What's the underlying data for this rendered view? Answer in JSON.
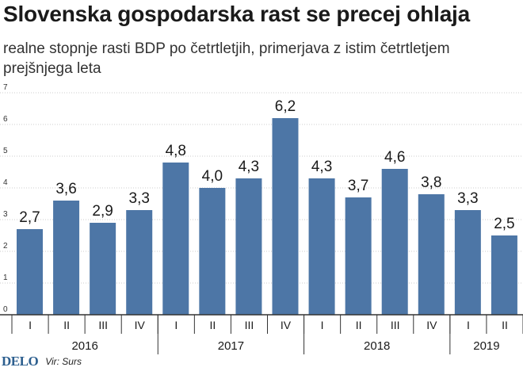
{
  "title": "Slovenska gospodarska rast se precej ohlaja",
  "subtitle": "realne stopnje rasti BDP po četrtletjih, primerjava z istim četrtletjem prejšnjega leta",
  "footer": {
    "logo": "DELO",
    "source": "Vir: Surs"
  },
  "colors": {
    "bar": "#4d76a6",
    "grid": "#cccccc",
    "axis": "#333333"
  },
  "chart_data": {
    "type": "bar",
    "title": "Slovenska gospodarska rast se precej ohlaja",
    "subtitle": "realne stopnje rasti BDP po četrtletjih, primerjava z istim četrtletjem prejšnjega leta",
    "categories": [
      "I",
      "II",
      "III",
      "IV",
      "I",
      "II",
      "III",
      "IV",
      "I",
      "II",
      "III",
      "IV",
      "I",
      "II"
    ],
    "year_groups": [
      {
        "label": "2016",
        "count": 4
      },
      {
        "label": "2017",
        "count": 4
      },
      {
        "label": "2018",
        "count": 4
      },
      {
        "label": "2019",
        "count": 2
      }
    ],
    "values": [
      2.7,
      3.6,
      2.9,
      3.3,
      4.8,
      4.0,
      4.3,
      6.2,
      4.3,
      3.7,
      4.6,
      3.8,
      3.3,
      2.5
    ],
    "value_labels": [
      "2,7",
      "3,6",
      "2,9",
      "3,3",
      "4,8",
      "4,0",
      "4,3",
      "6,2",
      "4,3",
      "3,7",
      "4,6",
      "3,8",
      "3,3",
      "2,5"
    ],
    "ylim": [
      0,
      7
    ],
    "yticks": [
      "0",
      "1",
      "2",
      "3",
      "4",
      "5",
      "6",
      "7"
    ],
    "grid": true,
    "legend": "none",
    "xlabel": "",
    "ylabel": ""
  }
}
